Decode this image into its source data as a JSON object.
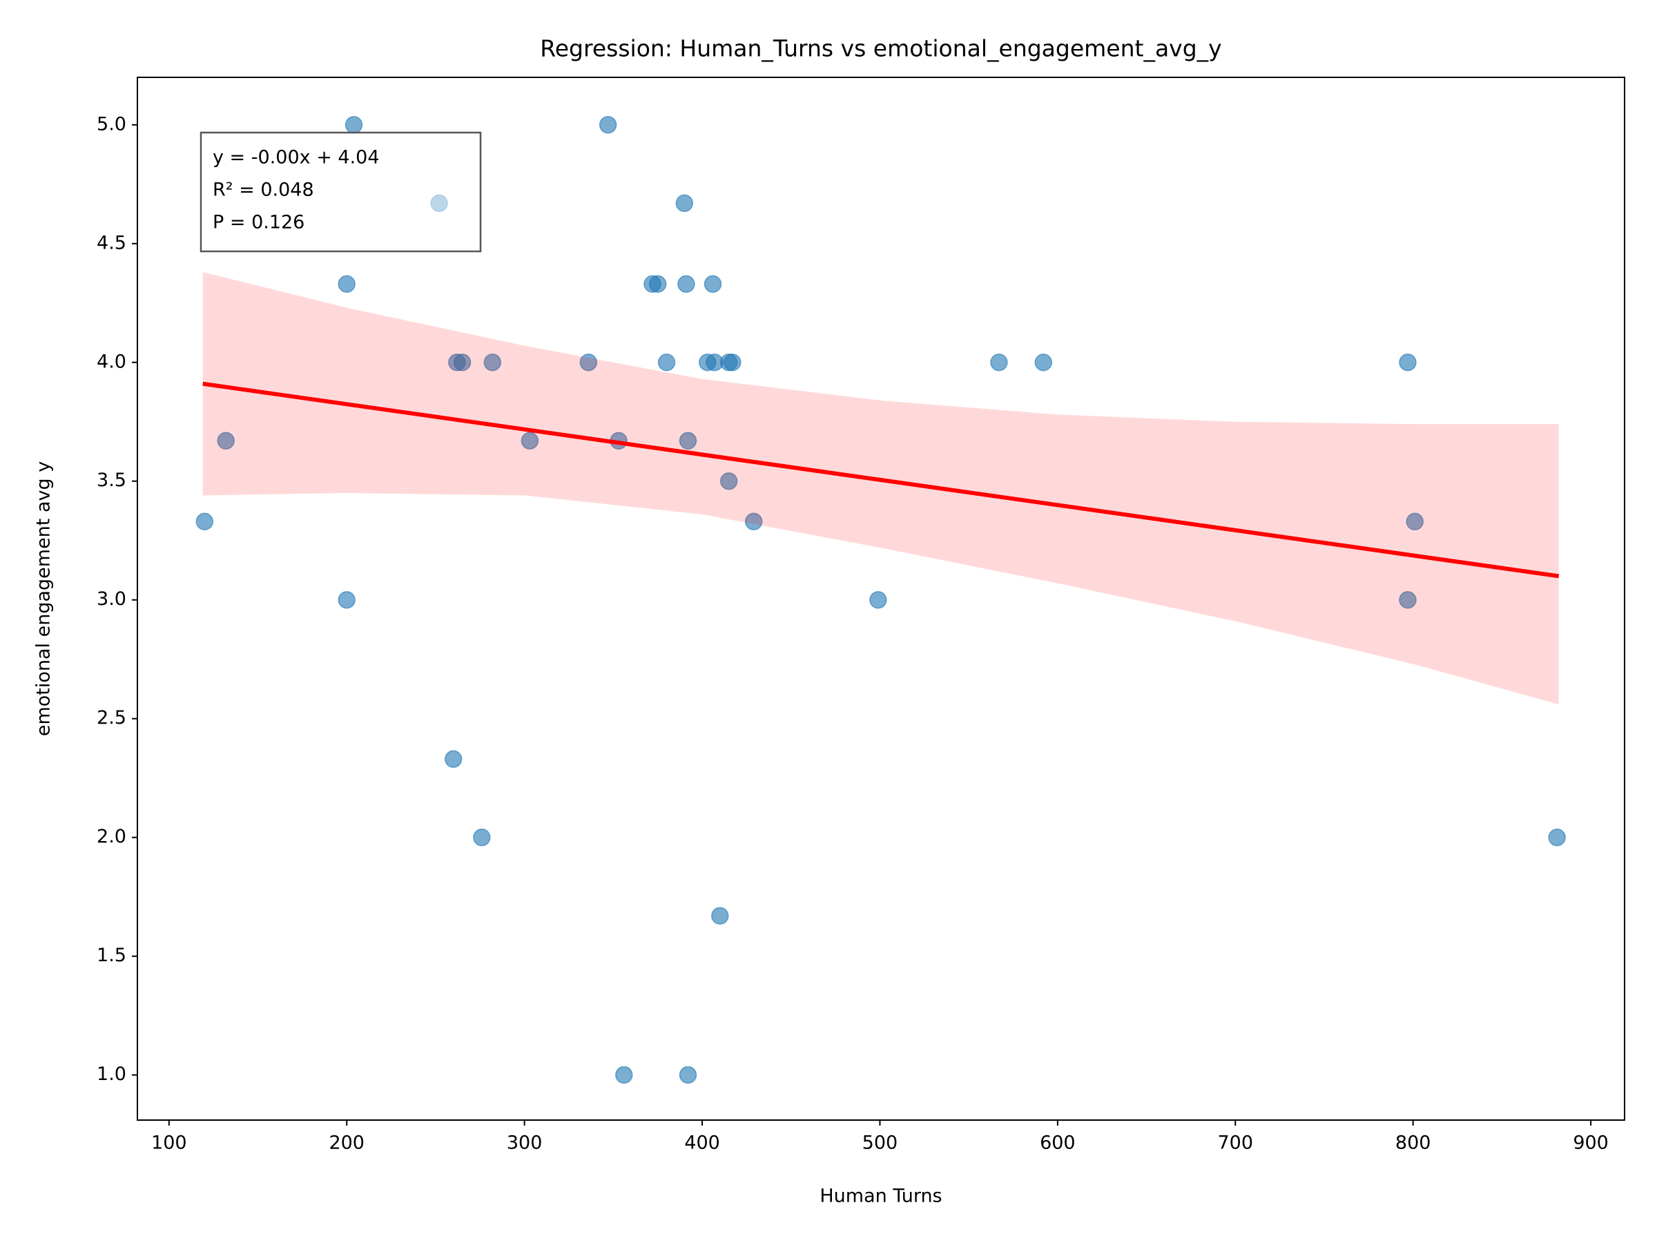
{
  "chart_data": {
    "type": "scatter",
    "title": "Regression: Human_Turns vs emotional_engagement_avg_y",
    "x_label": "Human Turns",
    "y_label": "emotional engagement avg y",
    "annotation": [
      "y = -0.00x + 4.04",
      "R² = 0.048",
      "P = 0.126"
    ],
    "xlim": [
      82.2,
      919.0
    ],
    "ylim": [
      0.81,
      5.2
    ],
    "xticks": [
      100,
      200,
      300,
      400,
      500,
      600,
      700,
      800,
      900
    ],
    "yticks": [
      {
        "value": 1,
        "label": "1.0"
      },
      1.5,
      {
        "value": 2,
        "label": "2.0"
      },
      2.5,
      {
        "value": 3,
        "label": "3.0"
      },
      3.5,
      {
        "value": 4,
        "label": "4.0"
      },
      4.5,
      {
        "value": 5,
        "label": "5.0"
      }
    ],
    "points": {
      "color": "#1f77b4",
      "x": [
        120,
        132,
        204,
        200,
        200,
        252,
        262,
        265,
        282,
        260,
        276,
        303,
        336,
        347,
        353,
        356,
        372,
        375,
        380,
        390,
        391,
        392,
        392,
        403,
        407,
        406,
        410,
        415,
        415,
        417,
        429,
        499,
        567,
        592,
        797,
        797,
        801,
        881
      ],
      "y": [
        3.33,
        3.67,
        5.0,
        4.33,
        3.0,
        4.67,
        4.0,
        4.0,
        4.0,
        2.33,
        2.0,
        3.67,
        4.0,
        5.0,
        3.67,
        1.0,
        4.33,
        4.33,
        4.0,
        4.67,
        4.33,
        3.67,
        1.0,
        4.0,
        4.0,
        4.33,
        1.67,
        3.5,
        4.0,
        4.0,
        3.33,
        3.0,
        4.0,
        4.0,
        4.0,
        3.0,
        3.33,
        2.0
      ]
    },
    "fit": {
      "color": "#ff0000",
      "x": [
        119,
        882
      ],
      "y": [
        3.91,
        3.1
      ]
    },
    "band": {
      "color": "#ff0000",
      "x": [
        119,
        200,
        300,
        400,
        500,
        600,
        700,
        800,
        882
      ],
      "upper": [
        4.38,
        4.23,
        4.07,
        3.93,
        3.84,
        3.78,
        3.75,
        3.74,
        3.74
      ],
      "lower": [
        3.44,
        3.45,
        3.44,
        3.36,
        3.22,
        3.07,
        2.91,
        2.73,
        2.56
      ]
    }
  }
}
